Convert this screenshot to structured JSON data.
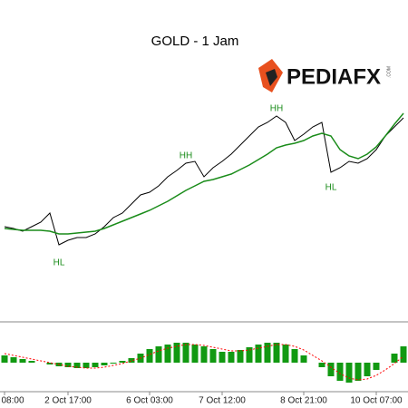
{
  "logo": {
    "text": "PEDIAFX",
    "suffix": ".COM"
  },
  "chart_data": [
    {
      "type": "line",
      "title": "GOLD - 1 Jam",
      "ylim": [
        95,
        450
      ],
      "series": [
        {
          "color": "#000000",
          "values": [
            200,
            198,
            195,
            200,
            205,
            215,
            180,
            185,
            188,
            188,
            192,
            200,
            210,
            215,
            225,
            235,
            238,
            245,
            255,
            262,
            270,
            272,
            255,
            265,
            272,
            280,
            290,
            300,
            310,
            315,
            322,
            315,
            295,
            302,
            310,
            315,
            260,
            265,
            272,
            270,
            275,
            285,
            300,
            310,
            320
          ]
        },
        {
          "color": "#1a8c1a",
          "values": [
            198,
            197,
            196,
            196,
            196,
            195,
            192,
            192,
            193,
            194,
            195,
            198,
            202,
            206,
            210,
            214,
            218,
            223,
            228,
            234,
            240,
            245,
            250,
            252,
            255,
            258,
            263,
            268,
            274,
            280,
            287,
            290,
            292,
            295,
            300,
            303,
            300,
            285,
            278,
            275,
            280,
            288,
            300,
            313,
            325
          ]
        }
      ],
      "annotations": [
        {
          "text": "HL",
          "x": 6,
          "y": 160
        },
        {
          "text": "HH",
          "x": 20,
          "y": 278
        },
        {
          "text": "HH",
          "x": 30,
          "y": 330
        },
        {
          "text": "HL",
          "x": 36,
          "y": 243
        }
      ]
    },
    {
      "type": "bar",
      "color": "#119911",
      "ylim": [
        -30,
        30
      ],
      "values": [
        8,
        6,
        4,
        2,
        0,
        -2,
        -4,
        -5,
        -6,
        -6,
        -5,
        -3,
        -1,
        2,
        5,
        10,
        15,
        18,
        20,
        22,
        22,
        20,
        18,
        15,
        12,
        12,
        14,
        17,
        20,
        22,
        22,
        20,
        15,
        8,
        0,
        -5,
        -15,
        -20,
        -22,
        -20,
        -15,
        -8,
        0,
        10,
        18
      ],
      "line": {
        "color": "#ff0000",
        "values": [
          10,
          8,
          6,
          4,
          2,
          0,
          -2,
          -4,
          -5,
          -6,
          -6,
          -5,
          -3,
          -1,
          2,
          5,
          9,
          13,
          16,
          18,
          20,
          20,
          19,
          17,
          15,
          13,
          13,
          14,
          16,
          18,
          20,
          20,
          18,
          14,
          8,
          2,
          -5,
          -12,
          -17,
          -19,
          -18,
          -14,
          -8,
          -1,
          7
        ]
      },
      "categories": [
        "08:00",
        null,
        null,
        null,
        null,
        null,
        null,
        "2 Oct 17:00",
        null,
        null,
        null,
        null,
        null,
        null,
        null,
        null,
        "6 Oct 03:00",
        null,
        null,
        null,
        null,
        null,
        null,
        null,
        "7 Oct 12:00",
        null,
        null,
        null,
        null,
        null,
        null,
        null,
        null,
        "8 Oct 21:00",
        null,
        null,
        null,
        null,
        null,
        null,
        null,
        "10 Oct 07:00",
        null,
        null,
        null
      ]
    }
  ]
}
